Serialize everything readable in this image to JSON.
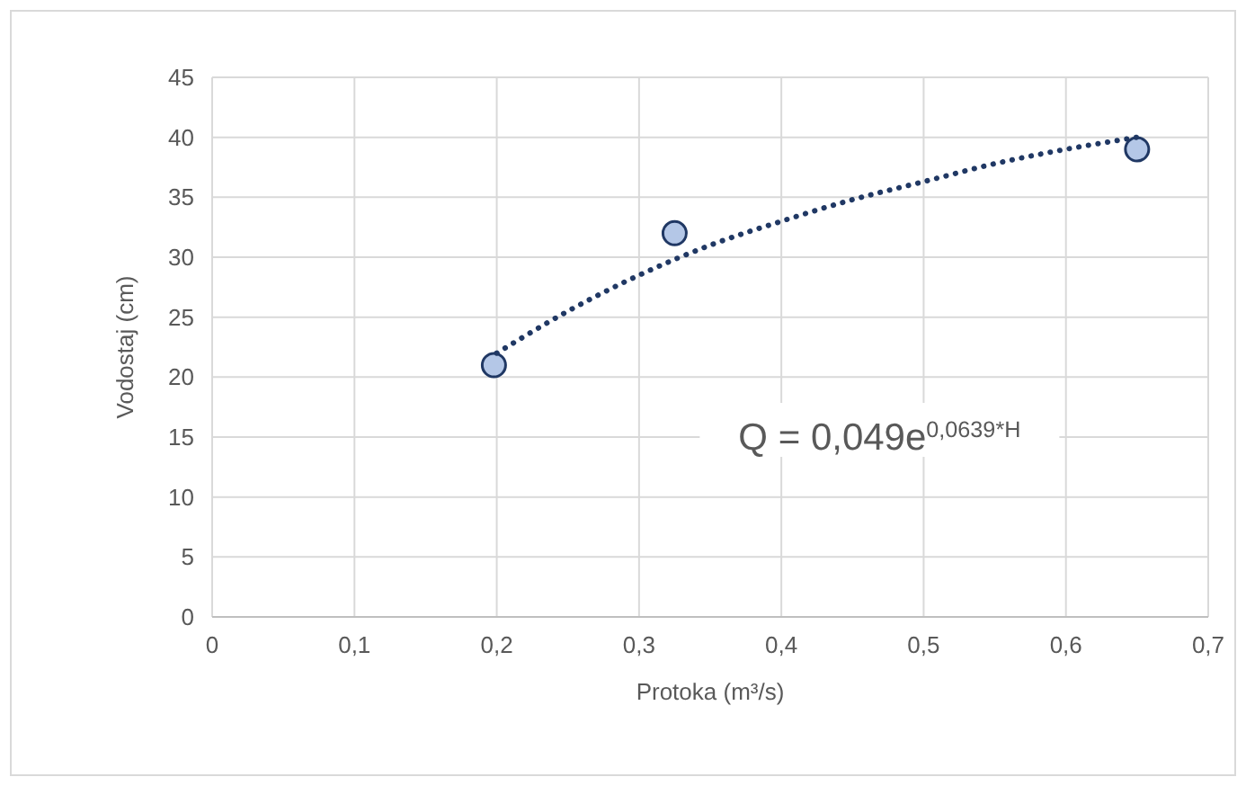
{
  "chart_data": {
    "type": "scatter",
    "xlabel": "Protoka (m³/s)",
    "ylabel": "Vodostaj (cm)",
    "xlim": [
      0,
      0.7
    ],
    "ylim": [
      0,
      45
    ],
    "xticks": [
      {
        "value": 0,
        "label": "0"
      },
      {
        "value": 0.1,
        "label": "0,1"
      },
      {
        "value": 0.2,
        "label": "0,2"
      },
      {
        "value": 0.3,
        "label": "0,3"
      },
      {
        "value": 0.4,
        "label": "0,4"
      },
      {
        "value": 0.5,
        "label": "0,5"
      },
      {
        "value": 0.6,
        "label": "0,6"
      },
      {
        "value": 0.7,
        "label": "0,7"
      }
    ],
    "yticks": [
      0,
      5,
      10,
      15,
      20,
      25,
      30,
      35,
      40,
      45
    ],
    "grid": true,
    "series": [
      {
        "color": "#b4c7e7",
        "x": [
          0.198,
          0.325,
          0.65
        ],
        "values": [
          21,
          32,
          39
        ],
        "marker": "circle"
      },
      {
        "type": "line",
        "color": "#203864",
        "line_style": "dotted",
        "marker": "none",
        "x": [
          0.2,
          0.25,
          0.3,
          0.35,
          0.4,
          0.45,
          0.5,
          0.55,
          0.6,
          0.65
        ],
        "values": [
          22,
          25.5,
          28.5,
          31,
          33,
          34.8,
          36.3,
          37.8,
          39,
          40
        ]
      }
    ],
    "annotations": [
      "Q = 0,049e$^{0,0639*H}$"
    ]
  }
}
